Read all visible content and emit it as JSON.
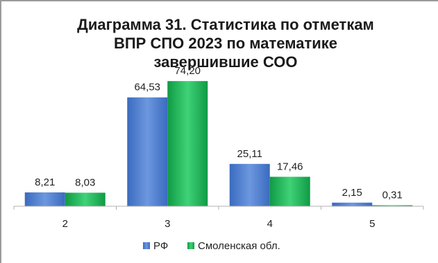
{
  "chart_data": {
    "type": "bar",
    "title_lines": [
      "Диаграмма 31. Статистика по отметкам",
      "ВПР СПО 2023 по математике",
      "завершившие СОО"
    ],
    "categories": [
      "2",
      "3",
      "4",
      "5"
    ],
    "series": [
      {
        "name": "РФ",
        "values": [
          8.21,
          64.53,
          25.11,
          2.15
        ],
        "labels": [
          "8,21",
          "64,53",
          "25,11",
          "2,15"
        ],
        "color": "#4f7fcf"
      },
      {
        "name": "Смоленская обл.",
        "values": [
          8.03,
          74.2,
          17.46,
          0.31
        ],
        "labels": [
          "8,03",
          "74,20",
          "17,46",
          "0,31"
        ],
        "color": "#1fb457"
      }
    ],
    "ylim": [
      0,
      80
    ],
    "grid": false,
    "legend_position": "bottom"
  }
}
